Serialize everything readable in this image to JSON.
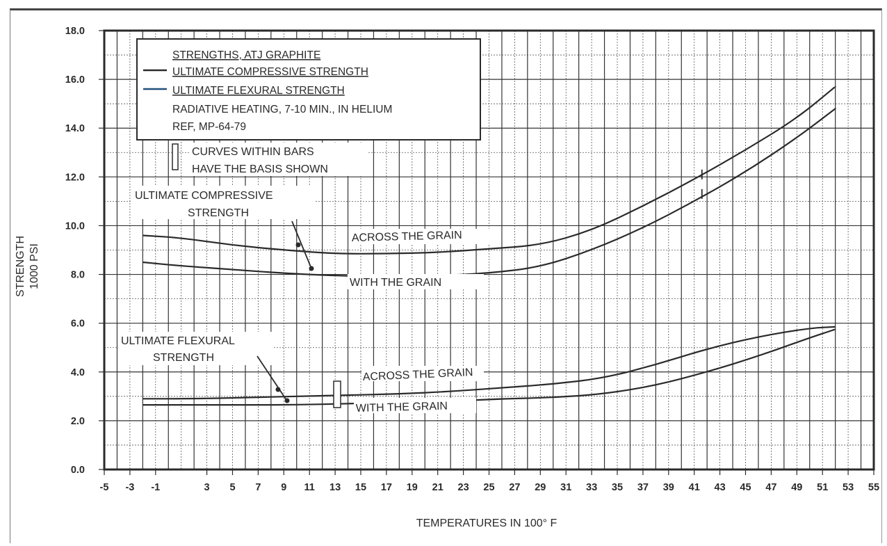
{
  "chart_data": {
    "type": "line",
    "title": "STRENGTHS, ATJ GRAPHITE",
    "xlabel": "TEMPERATURES IN 100° F",
    "ylabel": [
      "STRENGTH",
      "1000 PSI"
    ],
    "xlim": [
      -5,
      55
    ],
    "ylim": [
      0,
      18
    ],
    "x_ticks": [
      "-5",
      "-3",
      "-1",
      "3",
      "5",
      "7",
      "9",
      "11",
      "13",
      "15",
      "17",
      "19",
      "21",
      "23",
      "25",
      "27",
      "29",
      "31",
      "33",
      "35",
      "37",
      "39",
      "41",
      "43",
      "45",
      "47",
      "49",
      "51",
      "53",
      "55"
    ],
    "y_ticks": [
      "0.0",
      "2.0",
      "4.0",
      "6.0",
      "8.0",
      "10.0",
      "12.0",
      "14.0",
      "16.0",
      "18.0"
    ],
    "grid": true,
    "legend": {
      "placement": "top-left",
      "entries": [
        "ULTIMATE COMPRESSIVE STRENGTH",
        "ULTIMATE FLEXURAL STRENGTH"
      ],
      "notes": [
        "RADIATIVE HEATING, 7-10 MIN., IN HELIUM",
        "REF, MP-64-79"
      ],
      "colors": [
        "#2a2a2a",
        "#1f4f7a"
      ]
    },
    "basis_note": [
      "CURVES WITHIN BARS",
      "HAVE THE BASIS SHOWN"
    ],
    "group_labels": {
      "compressive": [
        "ULTIMATE COMPRESSIVE",
        "STRENGTH"
      ],
      "flexural": [
        "ULTIMATE FLEXURAL",
        "STRENGTH"
      ]
    },
    "curve_labels": {
      "across": "ACROSS THE GRAIN",
      "with": "WITH THE GRAIN"
    },
    "series": [
      {
        "group": "compressive",
        "label_key": "across",
        "x": [
          -2,
          1,
          5,
          9,
          13,
          17,
          21,
          25,
          29,
          33,
          37,
          41,
          45,
          49,
          52
        ],
        "y": [
          9.6,
          9.5,
          9.2,
          9.0,
          8.85,
          8.85,
          8.9,
          9.05,
          9.2,
          9.8,
          10.8,
          11.9,
          13.1,
          14.4,
          15.7
        ]
      },
      {
        "group": "compressive",
        "label_key": "with",
        "x": [
          -2,
          1,
          5,
          9,
          13,
          17,
          21,
          25,
          29,
          33,
          37,
          41,
          45,
          49,
          52
        ],
        "y": [
          8.5,
          8.35,
          8.2,
          8.05,
          7.95,
          7.9,
          7.95,
          8.05,
          8.3,
          9.0,
          9.9,
          11.0,
          12.2,
          13.6,
          14.8
        ]
      },
      {
        "group": "flexural",
        "label_key": "across",
        "x": [
          -2,
          2,
          6,
          10,
          14,
          18,
          22,
          26,
          30,
          34,
          38,
          42,
          46,
          50,
          52
        ],
        "y": [
          2.9,
          2.9,
          2.95,
          3.0,
          3.05,
          3.1,
          3.2,
          3.35,
          3.5,
          3.75,
          4.3,
          4.95,
          5.45,
          5.8,
          5.85
        ]
      },
      {
        "group": "flexural",
        "label_key": "with",
        "x": [
          -2,
          2,
          6,
          10,
          14,
          18,
          22,
          26,
          30,
          34,
          38,
          42,
          46,
          50,
          52
        ],
        "y": [
          2.65,
          2.65,
          2.65,
          2.65,
          2.7,
          2.75,
          2.8,
          2.9,
          2.95,
          3.1,
          3.45,
          4.0,
          4.65,
          5.4,
          5.75
        ]
      }
    ]
  }
}
